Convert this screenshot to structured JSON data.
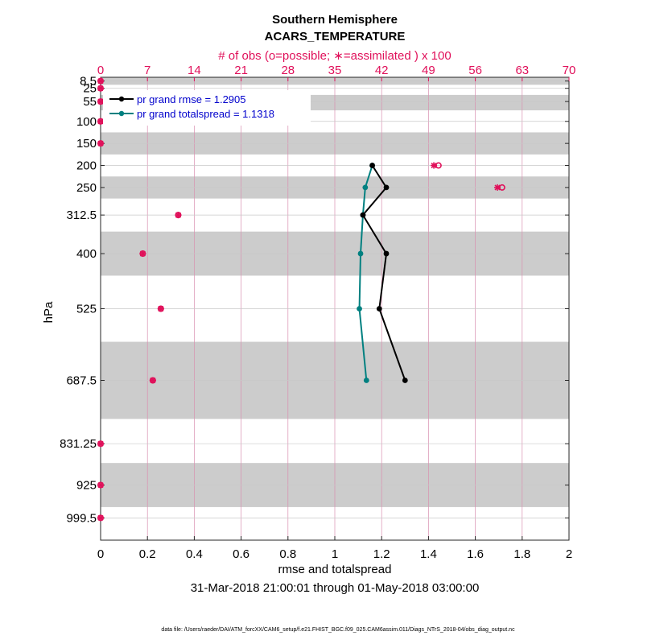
{
  "chart_data": {
    "type": "line",
    "title": "Southern Hemisphere",
    "subtitle": "ACARS_TEMPERATURE",
    "top_axis_label": "# of obs (o=possible; ∗=assimilated ) x 100",
    "xlabel": "rmse and totalspread",
    "ylabel": "hPa",
    "date_range": "31-Mar-2018 21:00:01 through 01-May-2018 03:00:00",
    "footer": "data file: /Users/raeder/DAI/ATM_forcXX/CAM6_setup/f.e21.FHIST_BGC.f09_025.CAM6assim.011/Diags_NTrS_2018-04/obs_diag_output.nc",
    "xlim": [
      0,
      2
    ],
    "x_ticks": [
      0,
      0.2,
      0.4,
      0.6,
      0.8,
      1,
      1.2,
      1.4,
      1.6,
      1.8,
      2
    ],
    "x_tick_labels": [
      "0",
      "0.2",
      "0.4",
      "0.6",
      "0.8",
      "1",
      "1.2",
      "1.4",
      "1.6",
      "1.8",
      "2"
    ],
    "top_xlim": [
      0,
      70
    ],
    "top_ticks": [
      0,
      7,
      14,
      21,
      28,
      35,
      42,
      49,
      56,
      63,
      70
    ],
    "top_tick_labels": [
      "0",
      "7",
      "14",
      "21",
      "28",
      "35",
      "42",
      "49",
      "56",
      "63",
      "70"
    ],
    "ylim": [
      1050,
      0
    ],
    "levels": [
      8.5,
      25,
      55,
      100,
      150,
      200,
      250,
      312.5,
      400,
      525,
      687.5,
      831.25,
      925,
      999.5
    ],
    "level_labels": [
      "8.5",
      "25",
      "55",
      "100",
      "150",
      "200",
      "250",
      "312.5",
      "400",
      "525",
      "687.5",
      "831.25",
      "925",
      "999.5"
    ],
    "layer_bands": [
      [
        0,
        17
      ],
      [
        40,
        75
      ],
      [
        125,
        175
      ],
      [
        225,
        275
      ],
      [
        350,
        450
      ],
      [
        600,
        775
      ],
      [
        875,
        975
      ]
    ],
    "series": [
      {
        "name": "rmse",
        "legend": "pr grand rmse = 1.2905",
        "color": "#000000",
        "points": [
          [
            1.16,
            200
          ],
          [
            1.22,
            250
          ],
          [
            1.12,
            312.5
          ],
          [
            1.22,
            400
          ],
          [
            1.19,
            525
          ],
          [
            1.3,
            687.5
          ]
        ]
      },
      {
        "name": "totalspread",
        "legend": "pr grand totalspread = 1.1318",
        "color": "#008080",
        "points": [
          [
            1.16,
            200
          ],
          [
            1.13,
            250
          ],
          [
            1.12,
            312.5
          ],
          [
            1.11,
            400
          ],
          [
            1.105,
            525
          ],
          [
            1.135,
            687.5
          ]
        ]
      }
    ],
    "obs_counts": {
      "levels": [
        8.5,
        25,
        55,
        100,
        150,
        200,
        250,
        312.5,
        400,
        525,
        687.5,
        831.25,
        925,
        999.5
      ],
      "possible": [
        0,
        0,
        0,
        0,
        0,
        50.5,
        60.0,
        11.6,
        6.3,
        9.0,
        7.8,
        0,
        0,
        0
      ],
      "assimilated": [
        0,
        0,
        0,
        0,
        0,
        49.8,
        59.3,
        11.6,
        6.3,
        9.0,
        7.8,
        0,
        0,
        0
      ]
    },
    "colors": {
      "count": "#e0105a",
      "legend_text": "#0000cc",
      "band": "#cccccc",
      "grid": "#d98fb0"
    }
  }
}
